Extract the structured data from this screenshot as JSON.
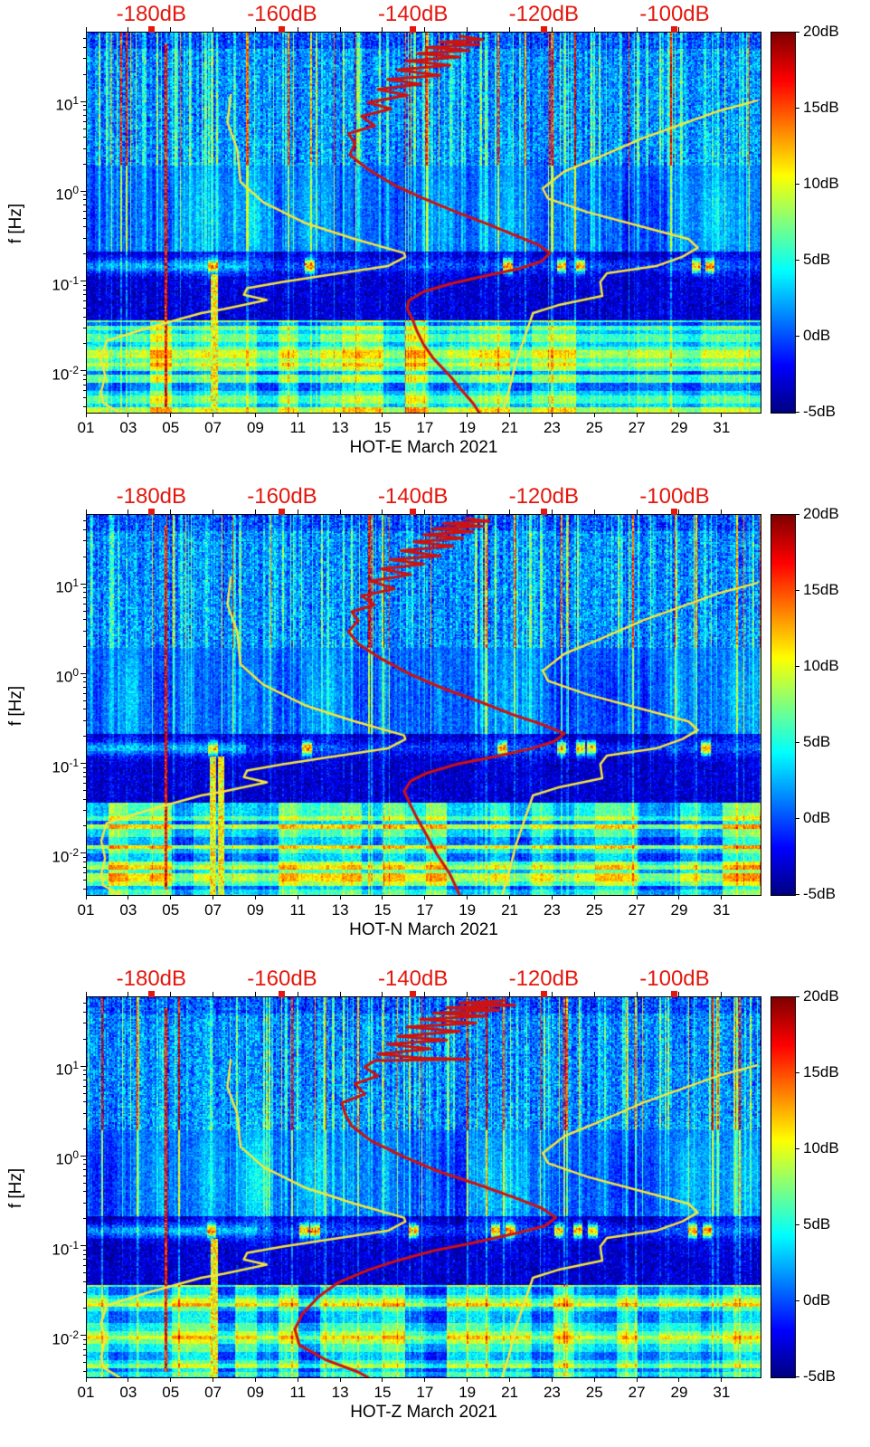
{
  "figure": {
    "description": "Three stacked power spectral density spectrograms (probability density style) for station HOT components E, N, Z, March 2021, with Peterson NLNM/NHNM noise model curves (yellow) and station median PSD curve (red) overlaid against a top dB axis.",
    "panel_count": 3
  },
  "noise_models": {
    "color": "#f5e63c",
    "nlnm_name": "low-noise-model-curve",
    "nhnm_name": "high-noise-model-curve",
    "nlnm": [
      [
        12,
        -168
      ],
      [
        6,
        -168.5
      ],
      [
        3,
        -167
      ],
      [
        1.3,
        -166.5
      ],
      [
        0.77,
        -163
      ],
      [
        0.45,
        -156.5
      ],
      [
        0.3,
        -149
      ],
      [
        0.21,
        -141.5
      ],
      [
        0.19,
        -141.3
      ],
      [
        0.15,
        -144
      ],
      [
        0.12,
        -153
      ],
      [
        0.1,
        -160
      ],
      [
        0.085,
        -165.5
      ],
      [
        0.072,
        -166
      ],
      [
        0.063,
        -162.5
      ],
      [
        0.05,
        -169
      ],
      [
        0.045,
        -172.5
      ],
      [
        0.031,
        -180.5
      ],
      [
        0.022,
        -187
      ],
      [
        0.014,
        -187.8
      ],
      [
        0.009,
        -187.2
      ],
      [
        0.006,
        -187.8
      ],
      [
        0.0045,
        -187.5
      ],
      [
        0.0035,
        -185
      ]
    ],
    "nhnm": [
      [
        10.5,
        -87.5
      ],
      [
        8,
        -93.5
      ],
      [
        4,
        -105
      ],
      [
        2.4,
        -112
      ],
      [
        1.7,
        -117
      ],
      [
        1.1,
        -120.3
      ],
      [
        0.85,
        -119.5
      ],
      [
        0.6,
        -113.5
      ],
      [
        0.42,
        -105.5
      ],
      [
        0.3,
        -98
      ],
      [
        0.24,
        -96.6
      ],
      [
        0.19,
        -99
      ],
      [
        0.15,
        -103
      ],
      [
        0.125,
        -110.5
      ],
      [
        0.1,
        -111.5
      ],
      [
        0.07,
        -111.2
      ],
      [
        0.055,
        -118
      ],
      [
        0.045,
        -121.8
      ],
      [
        0.025,
        -123
      ],
      [
        0.012,
        -124.5
      ],
      [
        0.006,
        -125.5
      ],
      [
        0.0035,
        -126.5
      ]
    ]
  },
  "chart_data": [
    {
      "type": "heatmap",
      "title": "HOT-E March 2021",
      "xlabel": "HOT-E March 2021",
      "ylabel": "f [Hz]",
      "x_tick_labels": [
        "01",
        "03",
        "05",
        "07",
        "09",
        "11",
        "13",
        "15",
        "17",
        "19",
        "21",
        "23",
        "25",
        "27",
        "29",
        "31"
      ],
      "y_tick_exponents": [
        1,
        0,
        -1,
        -2
      ],
      "freq_range_hz": [
        0.0035,
        60
      ],
      "day_range": [
        1,
        32.8
      ],
      "top_axis": {
        "tick_labels": [
          "-180dB",
          "-160dB",
          "-140dB",
          "-120dB",
          "-100dB"
        ],
        "tick_values_db": [
          -180,
          -160,
          -140,
          -120,
          -100
        ],
        "range_db": [
          -190,
          -87
        ],
        "color": "#e3170d"
      },
      "colorbar": {
        "tick_labels": [
          "20dB",
          "15dB",
          "10dB",
          "5dB",
          "0dB",
          "-5dB"
        ],
        "tick_values": [
          20,
          15,
          10,
          5,
          0,
          -5
        ],
        "range": [
          -5,
          20
        ],
        "colormap": "jet"
      },
      "overlays": {
        "psd_color": "#cf1110",
        "psd_curve": [
          [
            55,
            -133
          ],
          [
            50,
            -129.5
          ],
          [
            47,
            -136
          ],
          [
            44,
            -130
          ],
          [
            41,
            -138
          ],
          [
            38,
            -131.5
          ],
          [
            35,
            -139.5
          ],
          [
            32,
            -133
          ],
          [
            29,
            -141
          ],
          [
            26,
            -134.5
          ],
          [
            23,
            -142.5
          ],
          [
            20,
            -136
          ],
          [
            18,
            -144
          ],
          [
            16,
            -139
          ],
          [
            14,
            -145.5
          ],
          [
            12,
            -141
          ],
          [
            10,
            -147
          ],
          [
            8.5,
            -143.5
          ],
          [
            7,
            -148
          ],
          [
            5.5,
            -146
          ],
          [
            4.5,
            -150
          ],
          [
            3.5,
            -149
          ],
          [
            2.6,
            -149.8
          ],
          [
            1.8,
            -147
          ],
          [
            1.2,
            -143
          ],
          [
            0.85,
            -138.5
          ],
          [
            0.6,
            -133.5
          ],
          [
            0.45,
            -129
          ],
          [
            0.33,
            -124.5
          ],
          [
            0.26,
            -121
          ],
          [
            0.21,
            -119.2
          ],
          [
            0.17,
            -120.5
          ],
          [
            0.14,
            -124
          ],
          [
            0.115,
            -129.5
          ],
          [
            0.095,
            -134.5
          ],
          [
            0.078,
            -138.5
          ],
          [
            0.062,
            -140.8
          ],
          [
            0.05,
            -141
          ],
          [
            0.038,
            -140.2
          ],
          [
            0.028,
            -139.5
          ],
          [
            0.02,
            -138.5
          ],
          [
            0.014,
            -137
          ],
          [
            0.009,
            -134.5
          ],
          [
            0.006,
            -132.5
          ],
          [
            0.0045,
            -131
          ],
          [
            0.0035,
            -130
          ]
        ]
      },
      "texture": {
        "seed": 20210301,
        "red_line_day": 4.75,
        "bottom_hot_days": [
          7.0
        ],
        "microseism_hotspots": [
          6.95,
          11.5,
          20.9,
          23.4,
          24.3,
          29.8,
          30.4
        ],
        "ms_base_until": 8.5
      }
    },
    {
      "type": "heatmap",
      "title": "HOT-N March 2021",
      "xlabel": "HOT-N March 2021",
      "ylabel": "f [Hz]",
      "x_tick_labels": [
        "01",
        "03",
        "05",
        "07",
        "09",
        "11",
        "13",
        "15",
        "17",
        "19",
        "21",
        "23",
        "25",
        "27",
        "29",
        "31"
      ],
      "y_tick_exponents": [
        1,
        0,
        -1,
        -2
      ],
      "freq_range_hz": [
        0.0035,
        60
      ],
      "day_range": [
        1,
        32.8
      ],
      "top_axis": {
        "tick_labels": [
          "-180dB",
          "-160dB",
          "-140dB",
          "-120dB",
          "-100dB"
        ],
        "tick_values_db": [
          -180,
          -160,
          -140,
          -120,
          -100
        ],
        "range_db": [
          -190,
          -87
        ],
        "color": "#e3170d"
      },
      "colorbar": {
        "tick_labels": [
          "20dB",
          "15dB",
          "10dB",
          "5dB",
          "0dB",
          "-5dB"
        ],
        "tick_values": [
          20,
          15,
          10,
          5,
          0,
          -5
        ],
        "range": [
          -5,
          20
        ],
        "colormap": "jet"
      },
      "overlays": {
        "psd_color": "#cf1110",
        "psd_curve": [
          [
            55,
            -132
          ],
          [
            51,
            -128.5
          ],
          [
            48,
            -135.5
          ],
          [
            45,
            -129.5
          ],
          [
            42,
            -137
          ],
          [
            39,
            -131
          ],
          [
            36,
            -138.5
          ],
          [
            33,
            -132.5
          ],
          [
            30,
            -140
          ],
          [
            27,
            -134
          ],
          [
            24,
            -142
          ],
          [
            21,
            -136
          ],
          [
            19,
            -143.5
          ],
          [
            17,
            -138.5
          ],
          [
            15,
            -145
          ],
          [
            13,
            -140.5
          ],
          [
            11,
            -146.5
          ],
          [
            9,
            -143
          ],
          [
            7.5,
            -148
          ],
          [
            6,
            -146
          ],
          [
            5,
            -149.5
          ],
          [
            4,
            -148.5
          ],
          [
            3,
            -150
          ],
          [
            2.2,
            -148.5
          ],
          [
            1.5,
            -145
          ],
          [
            1.0,
            -140.5
          ],
          [
            0.7,
            -135.5
          ],
          [
            0.5,
            -130
          ],
          [
            0.36,
            -125
          ],
          [
            0.28,
            -120.5
          ],
          [
            0.22,
            -117
          ],
          [
            0.18,
            -118.5
          ],
          [
            0.15,
            -122
          ],
          [
            0.12,
            -128
          ],
          [
            0.1,
            -133.5
          ],
          [
            0.08,
            -138
          ],
          [
            0.065,
            -140.5
          ],
          [
            0.05,
            -141.5
          ],
          [
            0.035,
            -140.5
          ],
          [
            0.025,
            -139.5
          ],
          [
            0.016,
            -138
          ],
          [
            0.01,
            -136.5
          ],
          [
            0.006,
            -134.5
          ],
          [
            0.0035,
            -133
          ]
        ]
      },
      "texture": {
        "seed": 20210302,
        "red_line_day": 4.75,
        "bottom_hot_days": [
          6.95,
          7.35
        ],
        "microseism_hotspots": [
          6.95,
          11.4,
          20.6,
          23.4,
          24.3,
          24.8,
          30.2
        ],
        "ms_base_until": 8.5
      }
    },
    {
      "type": "heatmap",
      "title": "HOT-Z March 2021",
      "xlabel": "HOT-Z March 2021",
      "ylabel": "f [Hz]",
      "x_tick_labels": [
        "01",
        "03",
        "05",
        "07",
        "09",
        "11",
        "13",
        "15",
        "17",
        "19",
        "21",
        "23",
        "25",
        "27",
        "29",
        "31"
      ],
      "y_tick_exponents": [
        1,
        0,
        -1,
        -2
      ],
      "freq_range_hz": [
        0.0035,
        60
      ],
      "day_range": [
        1,
        32.8
      ],
      "top_axis": {
        "tick_labels": [
          "-180dB",
          "-160dB",
          "-140dB",
          "-120dB",
          "-100dB"
        ],
        "tick_values_db": [
          -180,
          -160,
          -140,
          -120,
          -100
        ],
        "range_db": [
          -190,
          -87
        ],
        "color": "#e3170d"
      },
      "colorbar": {
        "tick_labels": [
          "20dB",
          "15dB",
          "10dB",
          "5dB",
          "0dB",
          "-5dB"
        ],
        "tick_values": [
          20,
          15,
          10,
          5,
          0,
          -5
        ],
        "range": [
          -5,
          20
        ],
        "colormap": "jet"
      },
      "overlays": {
        "psd_color": "#cf1110",
        "psd_curve": [
          [
            55,
            -126
          ],
          [
            52,
            -133
          ],
          [
            49,
            -124.5
          ],
          [
            46,
            -135
          ],
          [
            43,
            -127
          ],
          [
            40,
            -137
          ],
          [
            37,
            -129
          ],
          [
            34,
            -139
          ],
          [
            31,
            -130.5
          ],
          [
            28,
            -141
          ],
          [
            25,
            -133
          ],
          [
            22,
            -142.5
          ],
          [
            20,
            -135
          ],
          [
            18,
            -144
          ],
          [
            16,
            -137.5
          ],
          [
            14,
            -145.5
          ],
          [
            12.6,
            -139
          ],
          [
            12.2,
            -131.5
          ],
          [
            11.8,
            -146
          ],
          [
            10,
            -147.5
          ],
          [
            8,
            -145.5
          ],
          [
            6.5,
            -149
          ],
          [
            5,
            -147.5
          ],
          [
            4,
            -151
          ],
          [
            3,
            -150.5
          ],
          [
            2.2,
            -149.5
          ],
          [
            1.5,
            -146.5
          ],
          [
            1.0,
            -141.5
          ],
          [
            0.7,
            -136.5
          ],
          [
            0.5,
            -130.5
          ],
          [
            0.36,
            -125
          ],
          [
            0.27,
            -120.5
          ],
          [
            0.21,
            -118.3
          ],
          [
            0.17,
            -120
          ],
          [
            0.14,
            -124.5
          ],
          [
            0.11,
            -131
          ],
          [
            0.09,
            -137
          ],
          [
            0.07,
            -142.5
          ],
          [
            0.055,
            -147
          ],
          [
            0.04,
            -151.5
          ],
          [
            0.028,
            -154.5
          ],
          [
            0.018,
            -157
          ],
          [
            0.012,
            -158.2
          ],
          [
            0.008,
            -157.5
          ],
          [
            0.0055,
            -153.5
          ],
          [
            0.004,
            -148.5
          ],
          [
            0.0035,
            -147
          ]
        ]
      },
      "texture": {
        "seed": 20210303,
        "red_line_day": 4.75,
        "bottom_hot_days": [
          7.0
        ],
        "microseism_hotspots": [
          6.9,
          11.3,
          11.8,
          16.4,
          20.3,
          21.0,
          23.3,
          24.2,
          24.9,
          29.6,
          30.3
        ],
        "ms_base_until": 9
      }
    }
  ]
}
